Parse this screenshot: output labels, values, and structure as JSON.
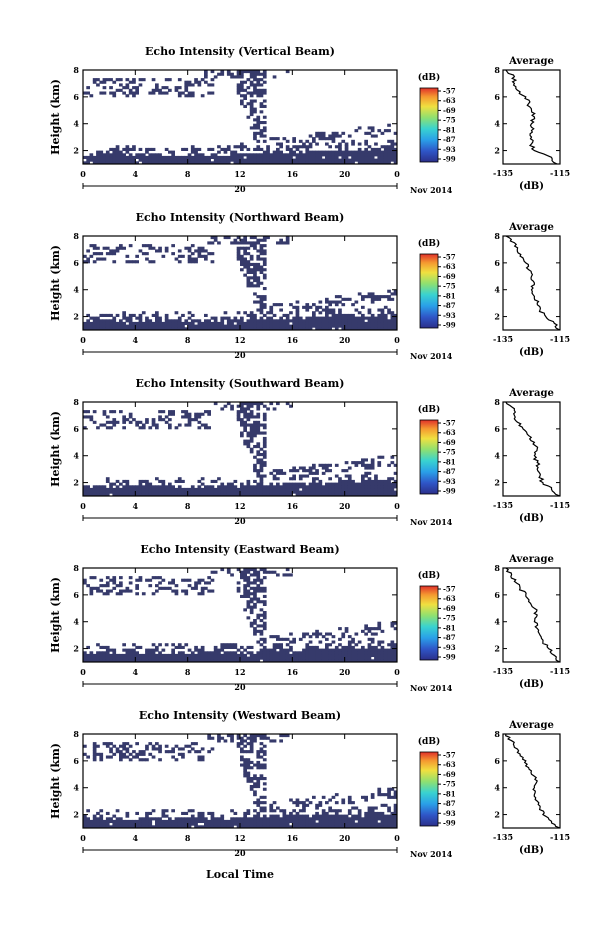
{
  "figure": {
    "xlabel": "Local Time",
    "date_label": "Nov 2014",
    "colorbar_unit": "(dB)",
    "colors": {
      "echo": "#363a6b",
      "background": "#ffffff"
    }
  },
  "chart_data": [
    {
      "type": "heatmap",
      "title": "Echo Intensity (Vertical Beam)",
      "ylabel": "Height (km)",
      "xlim": [
        0,
        24
      ],
      "ylim": [
        1,
        8
      ],
      "x_ticks": [
        "0",
        "4",
        "8",
        "12",
        "16",
        "20",
        "0"
      ],
      "y_ticks": [
        "2",
        "4",
        "6",
        "8"
      ],
      "day_label": "20",
      "colorbar_ticks": [
        "-57",
        "-63",
        "-69",
        "-75",
        "-81",
        "-87",
        "-93",
        "-99"
      ],
      "profile": {
        "title": "Average",
        "xlabel": "(dB)",
        "x_ticks": [
          "-135",
          "-115"
        ],
        "xlim": [
          -135,
          -115
        ],
        "y_ticks": [
          "2",
          "4",
          "6",
          "8"
        ],
        "heights": [
          1.0,
          1.5,
          2.0,
          2.5,
          3.0,
          3.5,
          4.0,
          4.5,
          5.0,
          5.5,
          6.0,
          6.5,
          7.0,
          7.5,
          8.0
        ],
        "values": [
          -116,
          -118,
          -124,
          -125,
          -125,
          -125,
          -125,
          -124,
          -125,
          -126,
          -127,
          -130,
          -131,
          -131,
          -134
        ]
      }
    },
    {
      "type": "heatmap",
      "title": "Echo Intensity (Northward Beam)",
      "ylabel": "Height (km)",
      "xlim": [
        0,
        24
      ],
      "ylim": [
        1,
        8
      ],
      "x_ticks": [
        "0",
        "4",
        "8",
        "12",
        "16",
        "20",
        "0"
      ],
      "y_ticks": [
        "2",
        "4",
        "6",
        "8"
      ],
      "day_label": "20",
      "colorbar_ticks": [
        "-57",
        "-63",
        "-69",
        "-75",
        "-81",
        "-87",
        "-93",
        "-99"
      ],
      "profile": {
        "title": "Average",
        "xlabel": "(dB)",
        "x_ticks": [
          "-135",
          "-115"
        ],
        "xlim": [
          -135,
          -115
        ],
        "y_ticks": [
          "2",
          "4",
          "6",
          "8"
        ],
        "heights": [
          1.0,
          1.5,
          2.0,
          2.5,
          3.0,
          3.5,
          4.0,
          4.5,
          5.0,
          5.5,
          6.0,
          6.5,
          7.0,
          7.5,
          8.0
        ],
        "values": [
          -115,
          -117,
          -120,
          -122,
          -123,
          -124,
          -125,
          -124,
          -125,
          -126,
          -127,
          -129,
          -130,
          -131,
          -134
        ]
      }
    },
    {
      "type": "heatmap",
      "title": "Echo Intensity (Southward Beam)",
      "ylabel": "Height (km)",
      "xlim": [
        0,
        24
      ],
      "ylim": [
        1,
        8
      ],
      "x_ticks": [
        "0",
        "4",
        "8",
        "12",
        "16",
        "20",
        "0"
      ],
      "y_ticks": [
        "2",
        "4",
        "6",
        "8"
      ],
      "day_label": "20",
      "colorbar_ticks": [
        "-57",
        "-63",
        "-69",
        "-75",
        "-81",
        "-87",
        "-93",
        "-99"
      ],
      "profile": {
        "title": "Average",
        "xlabel": "(dB)",
        "x_ticks": [
          "-135",
          "-115"
        ],
        "xlim": [
          -135,
          -115
        ],
        "y_ticks": [
          "2",
          "4",
          "6",
          "8"
        ],
        "heights": [
          1.0,
          1.5,
          2.0,
          2.5,
          3.0,
          3.5,
          4.0,
          4.5,
          5.0,
          5.5,
          6.0,
          6.5,
          7.0,
          7.5,
          8.0
        ],
        "values": [
          -115,
          -118,
          -121,
          -122,
          -123,
          -123,
          -124,
          -123,
          -124,
          -126,
          -128,
          -130,
          -131,
          -131,
          -134
        ]
      }
    },
    {
      "type": "heatmap",
      "title": "Echo Intensity (Eastward Beam)",
      "ylabel": "Height (km)",
      "xlim": [
        0,
        24
      ],
      "ylim": [
        1,
        8
      ],
      "x_ticks": [
        "0",
        "4",
        "8",
        "12",
        "16",
        "20",
        "0"
      ],
      "y_ticks": [
        "2",
        "4",
        "6",
        "8"
      ],
      "day_label": "20",
      "colorbar_ticks": [
        "-57",
        "-63",
        "-69",
        "-75",
        "-81",
        "-87",
        "-93",
        "-99"
      ],
      "profile": {
        "title": "Average",
        "xlabel": "(dB)",
        "x_ticks": [
          "-135",
          "-115"
        ],
        "xlim": [
          -135,
          -115
        ],
        "y_ticks": [
          "2",
          "4",
          "6",
          "8"
        ],
        "heights": [
          1.0,
          1.5,
          2.0,
          2.5,
          3.0,
          3.5,
          4.0,
          4.5,
          5.0,
          5.5,
          6.0,
          6.5,
          7.0,
          7.5,
          8.0
        ],
        "values": [
          -115,
          -117,
          -119,
          -121,
          -122,
          -123,
          -124,
          -123,
          -124,
          -126,
          -127,
          -129,
          -131,
          -132,
          -134
        ]
      }
    },
    {
      "type": "heatmap",
      "title": "Echo Intensity (Westward Beam)",
      "ylabel": "Height (km)",
      "xlim": [
        0,
        24
      ],
      "ylim": [
        1,
        8
      ],
      "x_ticks": [
        "0",
        "4",
        "8",
        "12",
        "16",
        "20",
        "0"
      ],
      "y_ticks": [
        "2",
        "4",
        "6",
        "8"
      ],
      "day_label": "20",
      "colorbar_ticks": [
        "-57",
        "-63",
        "-69",
        "-75",
        "-81",
        "-87",
        "-93",
        "-99"
      ],
      "profile": {
        "title": "Average",
        "xlabel": "(dB)",
        "x_ticks": [
          "-135",
          "-115"
        ],
        "xlim": [
          -135,
          -115
        ],
        "y_ticks": [
          "2",
          "4",
          "6",
          "8"
        ],
        "heights": [
          1.0,
          1.5,
          2.0,
          2.5,
          3.0,
          3.5,
          4.0,
          4.5,
          5.0,
          5.5,
          6.0,
          6.5,
          7.0,
          7.5,
          8.0
        ],
        "values": [
          -115,
          -118,
          -121,
          -122,
          -123,
          -124,
          -124,
          -123,
          -125,
          -126,
          -127,
          -129,
          -131,
          -132,
          -134
        ]
      }
    }
  ]
}
